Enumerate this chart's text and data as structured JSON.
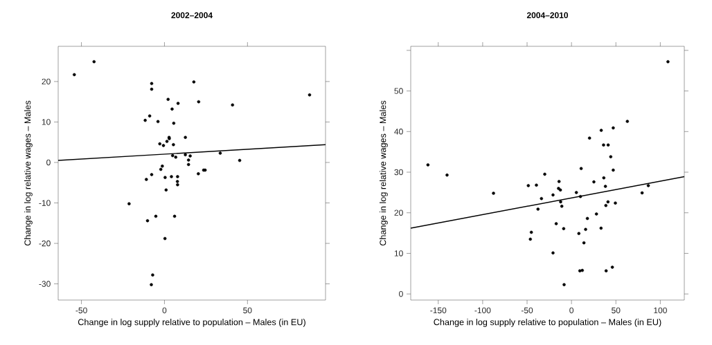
{
  "chart_data": [
    {
      "type": "scatter",
      "title": "2002–2004",
      "xlabel": "Change in log supply relative to population – Males (in EU)",
      "ylabel": "Change in log relative wages – Males",
      "xlim": [
        -64,
        97
      ],
      "ylim": [
        -34,
        28.7
      ],
      "xticks": [
        -50,
        0,
        50
      ],
      "yticks": [
        -30,
        -20,
        -10,
        0,
        10,
        20
      ],
      "marker": "circle",
      "series": [
        {
          "color": "#000000",
          "x": [
            -54.3,
            -42.4,
            -7.7,
            -7.7,
            17.7,
            2.2,
            8.2,
            20.6,
            41.0,
            87.4,
            4.6,
            -8.9,
            -11.6,
            -3.9,
            5.6,
            2.8,
            2.9,
            12.6,
            -2.8,
            -0.6,
            1.5,
            5.4,
            4.9,
            6.8,
            12.6,
            15.5,
            14.5,
            14.5,
            33.6,
            45.3,
            -1.3,
            -2.2,
            -7.7,
            -10.9,
            0.4,
            4.2,
            7.9,
            7.8,
            7.9,
            20.4,
            23.6,
            24.5,
            1.0,
            -21.3,
            -10.2,
            -5.2,
            6.1,
            0.3,
            -7.1,
            -7.9
          ],
          "values": [
            21.7,
            24.9,
            19.5,
            18.1,
            19.9,
            15.6,
            14.6,
            15.0,
            14.2,
            16.7,
            13.2,
            11.5,
            10.4,
            10.1,
            9.7,
            6.2,
            5.9,
            6.2,
            4.6,
            4.2,
            5.2,
            4.4,
            1.7,
            1.3,
            1.9,
            1.6,
            0.6,
            -0.5,
            2.3,
            0.5,
            -0.9,
            -1.7,
            -3.0,
            -4.2,
            -3.7,
            -3.5,
            -3.5,
            -4.7,
            -5.5,
            -2.8,
            -1.9,
            -1.9,
            -6.8,
            -10.2,
            -14.4,
            -13.3,
            -13.3,
            -18.8,
            -27.8,
            -30.2
          ]
        },
        {
          "type": "line",
          "color": "#000000",
          "marker": "none",
          "x": [
            -64,
            97
          ],
          "values": [
            0.5,
            4.4
          ]
        }
      ]
    },
    {
      "type": "scatter",
      "title": "2004–2010",
      "xlabel": "Change in log supply relative to population – Males (in EU)",
      "ylabel": "Change in log relative wages – Males",
      "xlim": [
        -181,
        127
      ],
      "ylim": [
        -1.5,
        61
      ],
      "xticks": [
        -150,
        -100,
        -50,
        0,
        50,
        100
      ],
      "yticks": [
        0,
        10,
        20,
        30,
        40,
        50,
        {
          "value": 60,
          "label": null
        }
      ],
      "marker": "circle",
      "series": [
        {
          "color": "#000000",
          "x": [
            108.6,
            -161.6,
            -140.1,
            -87.8,
            62.9,
            33.5,
            47.0,
            20.3,
            36.1,
            41.3,
            44.2,
            47.0,
            10.9,
            -30.1,
            -14.0,
            -48.6,
            -39.5,
            25.2,
            36.4,
            38.2,
            -14.6,
            -12.5,
            5.5,
            79.5,
            86.5,
            -20.8,
            -33.8,
            10.1,
            -12.2,
            -10.9,
            41.1,
            38.7,
            49.4,
            -37.7,
            28.1,
            17.9,
            -17.2,
            -8.8,
            33.3,
            15.9,
            8.3,
            -45.2,
            -46.3,
            14.0,
            -20.8,
            46.0,
            39.0,
            9.4,
            12.2,
            -8.3
          ],
          "values": [
            57.2,
            31.8,
            29.3,
            24.8,
            42.5,
            40.3,
            40.9,
            38.4,
            36.7,
            36.7,
            33.8,
            30.5,
            30.9,
            29.5,
            27.7,
            26.7,
            26.8,
            27.6,
            28.6,
            26.5,
            26.0,
            25.6,
            25.0,
            24.9,
            26.7,
            24.4,
            23.5,
            24.0,
            22.7,
            21.6,
            22.7,
            21.8,
            22.4,
            20.9,
            19.7,
            18.6,
            17.3,
            16.1,
            16.2,
            15.9,
            14.9,
            15.2,
            13.5,
            12.6,
            10.1,
            6.6,
            5.7,
            5.7,
            5.8,
            2.3
          ]
        },
        {
          "type": "line",
          "color": "#000000",
          "marker": "none",
          "x": [
            -181,
            127
          ],
          "values": [
            16.2,
            28.9
          ]
        }
      ]
    }
  ]
}
